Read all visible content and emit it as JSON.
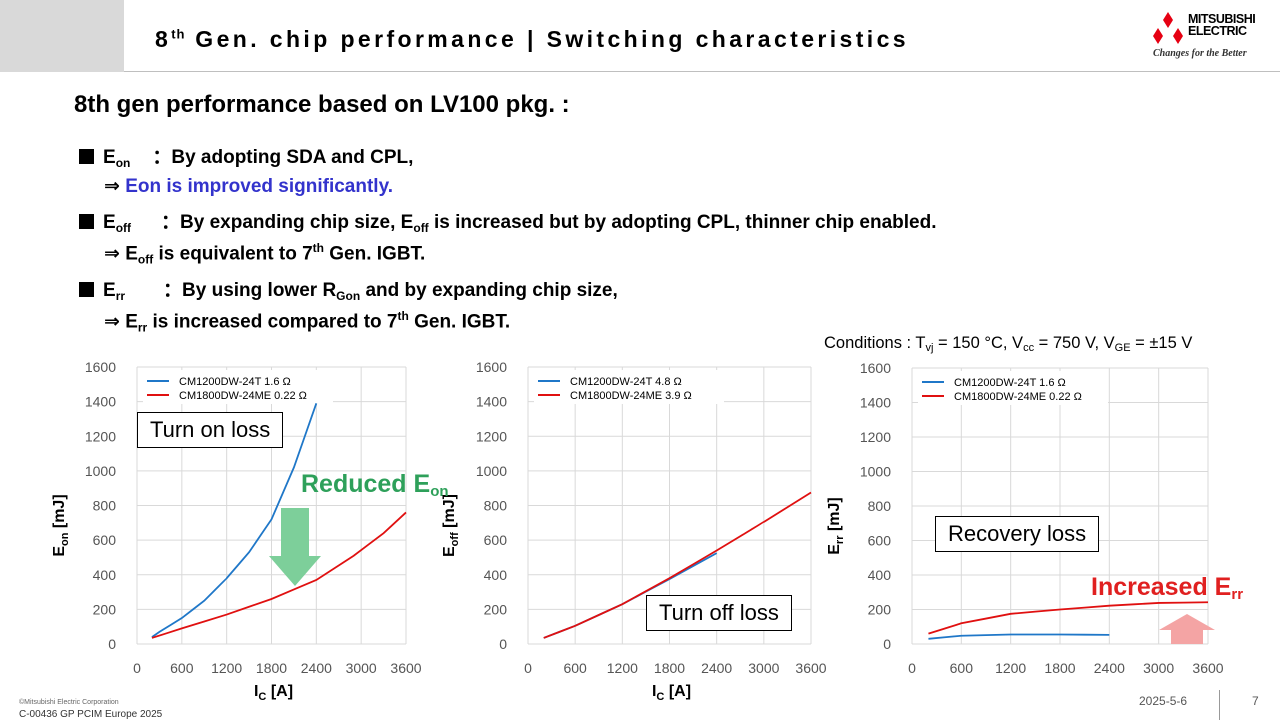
{
  "header": {
    "title_main": "8",
    "title_sup": "th",
    "title_rest": " Gen. chip performance | Switching characteristics",
    "logo_line1": "MITSUBISHI",
    "logo_line2": "ELECTRIC",
    "logo_tagline": "Changes for the Better"
  },
  "heading": "8th gen performance based on LV100 pkg. :",
  "bullets": {
    "eon": {
      "label": "E",
      "label_sub": "on",
      "text": "：By adopting SDA and CPL,",
      "result_arrow": "⇒ ",
      "result": "Eon is improved significantly."
    },
    "eoff": {
      "label": "E",
      "label_sub": "off",
      "text_a": "：By expanding chip size, E",
      "text_sub": "off",
      "text_b": " is increased but by adopting CPL, thinner chip enabled.",
      "result_arrow": "⇒ ",
      "result_a": "E",
      "result_sub": "off",
      "result_b": " is equivalent to 7",
      "result_sup": "th",
      "result_c": " Gen. IGBT."
    },
    "err": {
      "label": "E",
      "label_sub": "rr",
      "text_a": "：By using lower R",
      "text_sub": "Gon",
      "text_b": " and by expanding chip size,",
      "result_arrow": "⇒ ",
      "result_a": "E",
      "result_sub": "rr",
      "result_b": " is increased compared to 7",
      "result_sup": "th",
      "result_c": " Gen. IGBT."
    }
  },
  "conditions": {
    "a": "Conditions : T",
    "a_sub": "vj",
    "b": " = 150 °C, V",
    "b_sub": "cc",
    "c": " = 750 V, V",
    "c_sub": "GE",
    "d": " = ±15 V"
  },
  "annotations": {
    "turn_on": "Turn on loss",
    "turn_off": "Turn off loss",
    "recovery": "Recovery loss",
    "reduced": "Reduced E",
    "reduced_sub": "on",
    "increased": "Increased E",
    "increased_sub": "rr"
  },
  "colors": {
    "blue_series": "#1f77c8",
    "red_series": "#e01010",
    "green_arrow": "#7dcf9a",
    "red_arrow": "#f4a4a4",
    "highlight_blue": "#3333cc"
  },
  "chart_data": [
    {
      "type": "line",
      "xlabel": "I",
      "xlabel_sub": "C",
      "xlabel_unit": " [A]",
      "ylabel": "E",
      "ylabel_sub": "on",
      "ylabel_unit": " [mJ]",
      "xlim": [
        0,
        3600
      ],
      "ylim": [
        0,
        1600
      ],
      "xticks": [
        0,
        600,
        1200,
        1800,
        2400,
        3000,
        3600
      ],
      "yticks": [
        0,
        200,
        400,
        600,
        800,
        1000,
        1200,
        1400,
        1600
      ],
      "grid": true,
      "legend_position": "top-left",
      "series": [
        {
          "name": "CM1200DW-24T 1.6 Ω",
          "color": "#1f77c8",
          "x": [
            200,
            300,
            600,
            900,
            1200,
            1500,
            1800,
            2100,
            2400
          ],
          "y": [
            40,
            70,
            150,
            250,
            380,
            530,
            720,
            1020,
            1390
          ]
        },
        {
          "name": "CM1800DW-24ME 0.22 Ω",
          "color": "#e01010",
          "x": [
            200,
            600,
            1200,
            1800,
            2400,
            2900,
            3300,
            3600
          ],
          "y": [
            35,
            90,
            170,
            260,
            370,
            510,
            640,
            760
          ]
        }
      ]
    },
    {
      "type": "line",
      "xlabel": "I",
      "xlabel_sub": "C",
      "xlabel_unit": " [A]",
      "ylabel": "E",
      "ylabel_sub": "off",
      "ylabel_unit": " [mJ]",
      "xlim": [
        0,
        3600
      ],
      "ylim": [
        0,
        1600
      ],
      "xticks": [
        0,
        600,
        1200,
        1800,
        2400,
        3000,
        3600
      ],
      "yticks": [
        0,
        200,
        400,
        600,
        800,
        1000,
        1200,
        1400,
        1600
      ],
      "grid": true,
      "legend_position": "top-left",
      "series": [
        {
          "name": "CM1200DW-24T 4.8 Ω",
          "color": "#1f77c8",
          "x": [
            200,
            600,
            1200,
            1800,
            2400
          ],
          "y": [
            35,
            105,
            230,
            375,
            525
          ]
        },
        {
          "name": "CM1800DW-24ME 3.9 Ω",
          "color": "#e01010",
          "x": [
            200,
            600,
            1200,
            1800,
            2400,
            3000,
            3600
          ],
          "y": [
            35,
            105,
            230,
            380,
            540,
            705,
            875
          ]
        }
      ]
    },
    {
      "type": "line",
      "xlabel": "",
      "xlabel_sub": "",
      "xlabel_unit": "",
      "ylabel": "E",
      "ylabel_sub": "rr",
      "ylabel_unit": " [mJ]",
      "xlim": [
        0,
        3600
      ],
      "ylim": [
        0,
        1600
      ],
      "xticks": [
        0,
        600,
        1200,
        1800,
        2400,
        3000,
        3600
      ],
      "yticks": [
        0,
        200,
        400,
        600,
        800,
        1000,
        1200,
        1400,
        1600
      ],
      "grid": true,
      "legend_position": "top-left",
      "series": [
        {
          "name": "CM1200DW-24T 1.6 Ω",
          "color": "#1f77c8",
          "x": [
            200,
            600,
            1200,
            1800,
            2400
          ],
          "y": [
            30,
            48,
            55,
            55,
            53
          ]
        },
        {
          "name": "CM1800DW-24ME 0.22 Ω",
          "color": "#e01010",
          "x": [
            200,
            600,
            1200,
            1800,
            2400,
            3000,
            3600
          ],
          "y": [
            60,
            120,
            175,
            200,
            222,
            238,
            242
          ]
        }
      ]
    }
  ],
  "footer": {
    "copyright": "©Mitsubishi Electric Corporation",
    "code": "C-00436 GP PCIM Europe 2025",
    "date": "2025-5-6",
    "page": "7"
  }
}
